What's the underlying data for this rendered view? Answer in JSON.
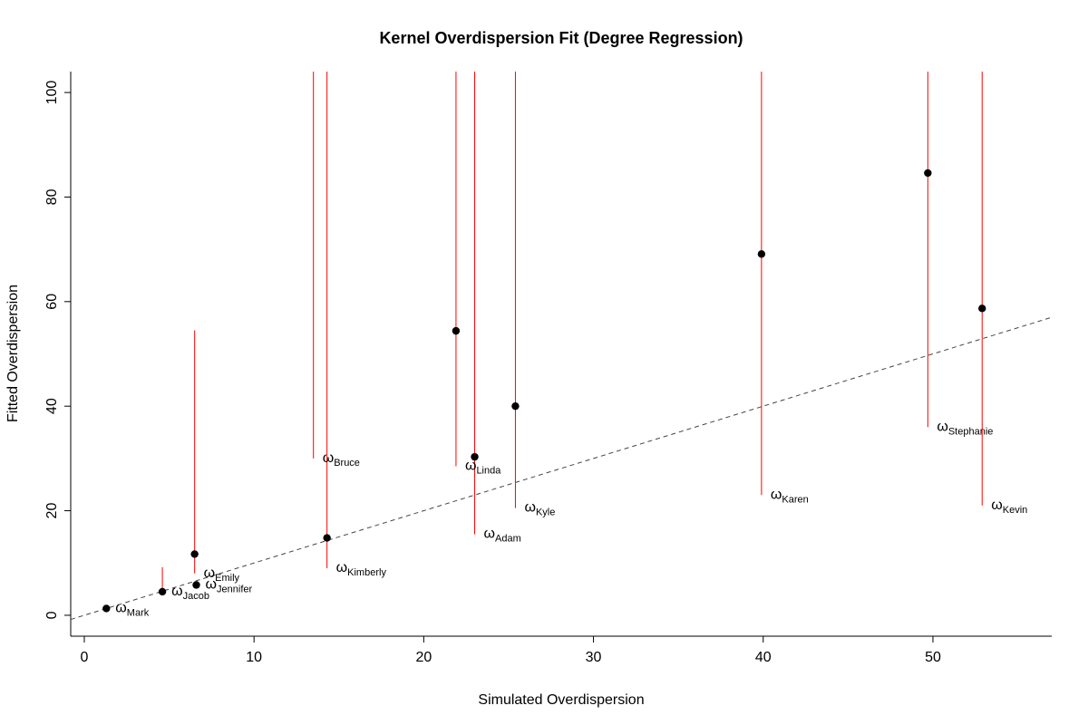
{
  "chart_data": {
    "type": "scatter",
    "title": "Kernel Overdispersion Fit (Degree Regression)",
    "xlabel": "Simulated Overdispersion",
    "ylabel": "Fitted Overdispersion",
    "xlim": [
      -0.8,
      57
    ],
    "ylim": [
      -4,
      104
    ],
    "x_ticks": [
      0,
      10,
      20,
      30,
      40,
      50
    ],
    "y_ticks": [
      0,
      20,
      40,
      60,
      80,
      100
    ],
    "reference_line": {
      "slope": 1,
      "intercept": 0,
      "style": "dashed"
    },
    "point_color": "#000000",
    "interval_color": "#ff0000",
    "label_symbol": "ω",
    "points": [
      {
        "name": "Mark",
        "x": 1.3,
        "y": 1.3,
        "lower": 1.3,
        "upper": 1.3
      },
      {
        "name": "Jacob",
        "x": 4.6,
        "y": 4.5,
        "lower": 4.5,
        "upper": 9.2
      },
      {
        "name": "Jennifer",
        "x": 6.6,
        "y": 5.8,
        "lower": 5.8,
        "upper": 5.8
      },
      {
        "name": "Emily",
        "x": 6.5,
        "y": 11.7,
        "lower": 8.0,
        "upper": 54.5
      },
      {
        "name": "Kimberly",
        "x": 14.3,
        "y": 14.8,
        "lower": 9.0,
        "upper": 104
      },
      {
        "name": "Bruce",
        "x": 13.5,
        "y": null,
        "lower": 30.0,
        "upper": 104
      },
      {
        "name": "Linda",
        "x": 21.9,
        "y": 54.4,
        "lower": 28.5,
        "upper": 104
      },
      {
        "name": "Adam",
        "x": 23.0,
        "y": 30.3,
        "lower": 15.5,
        "upper": 104
      },
      {
        "name": "Kyle",
        "x": 25.4,
        "y": 40.0,
        "lower": 20.5,
        "upper": 104
      },
      {
        "name": "Karen",
        "x": 39.9,
        "y": 69.1,
        "lower": 23.0,
        "upper": 104
      },
      {
        "name": "Stephanie",
        "x": 49.7,
        "y": 84.6,
        "lower": 36.0,
        "upper": 104
      },
      {
        "name": "Kevin",
        "x": 52.9,
        "y": 58.7,
        "lower": 21.0,
        "upper": 104
      }
    ]
  }
}
